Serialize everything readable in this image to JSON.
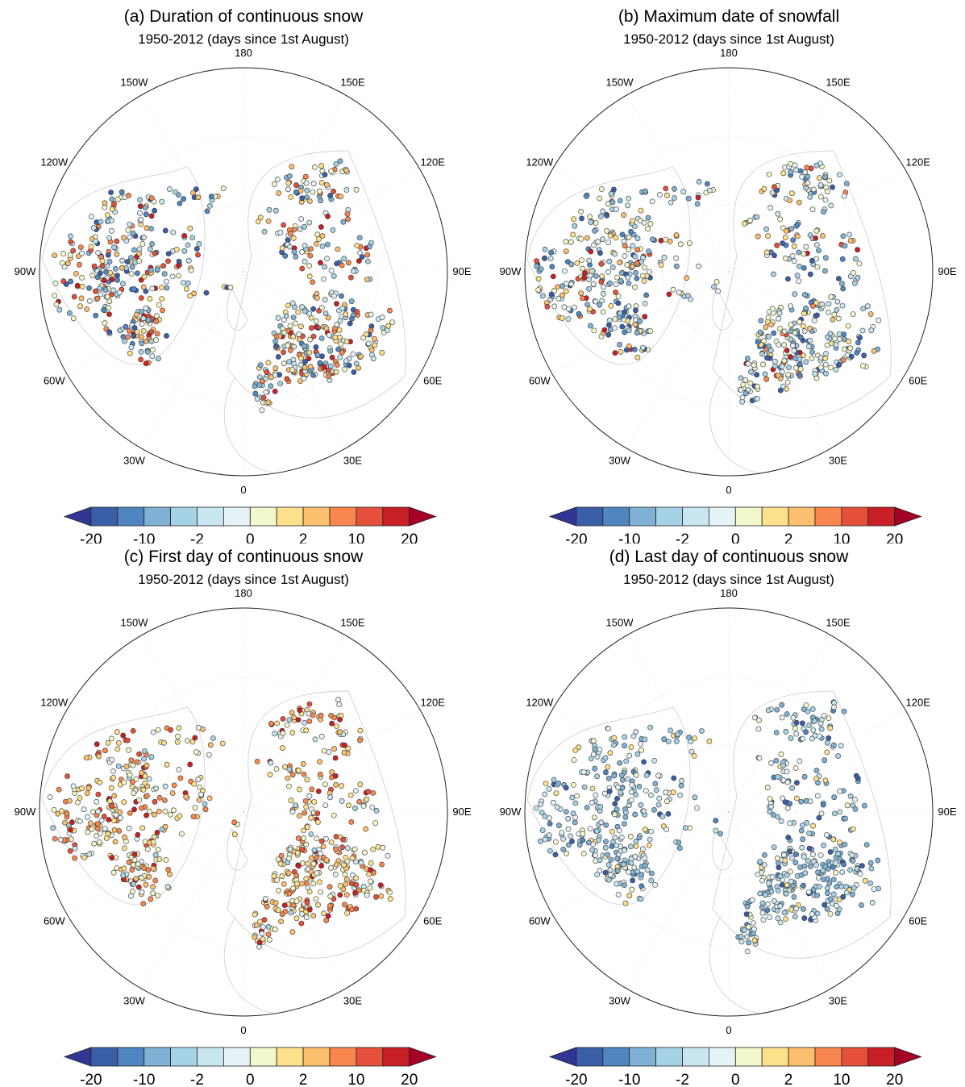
{
  "figure": {
    "subtitle": "1950-2012 (days since 1st August)",
    "longitude_labels": [
      "180",
      "150E",
      "120E",
      "90E",
      "60E",
      "30E",
      "0",
      "30W",
      "60W",
      "90W",
      "120W",
      "150W"
    ],
    "colorbar": {
      "tick_labels": [
        "-20",
        "-10",
        "-2",
        "0",
        "2",
        "10",
        "20"
      ],
      "colors": [
        "#313695",
        "#3a5fa8",
        "#4f86c0",
        "#7fb2d5",
        "#a6d2e6",
        "#c8e6f0",
        "#e6f3f6",
        "#f2f7cc",
        "#fde08c",
        "#fcbf6d",
        "#f7874f",
        "#e4503a",
        "#c91f26",
        "#a50026"
      ]
    },
    "panels": [
      {
        "id": "a",
        "title": "(a) Duration of continuous snow",
        "palette_bias": "mixed"
      },
      {
        "id": "b",
        "title": "(b) Maximum date of snowfall",
        "palette_bias": "mixed-cool"
      },
      {
        "id": "c",
        "title": "(c) First day of continuous snow",
        "palette_bias": "warm"
      },
      {
        "id": "d",
        "title": "(d) Last day of continuous snow",
        "palette_bias": "cool"
      }
    ]
  }
}
